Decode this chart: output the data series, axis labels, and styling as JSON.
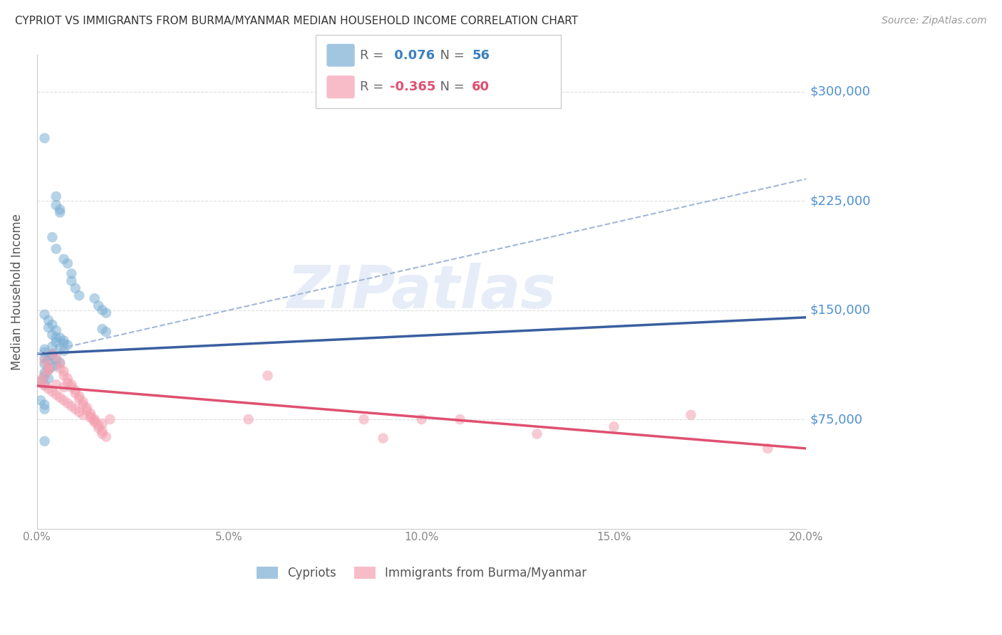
{
  "title": "CYPRIOT VS IMMIGRANTS FROM BURMA/MYANMAR MEDIAN HOUSEHOLD INCOME CORRELATION CHART",
  "source": "Source: ZipAtlas.com",
  "ylabel": "Median Household Income",
  "xlim": [
    0.0,
    0.2
  ],
  "ylim": [
    0,
    325000
  ],
  "yticks": [
    0,
    75000,
    150000,
    225000,
    300000
  ],
  "ytick_labels": [
    "",
    "$75,000",
    "$150,000",
    "$225,000",
    "$300,000"
  ],
  "xtick_labels": [
    "0.0%",
    "",
    "",
    "",
    "",
    "5.0%",
    "",
    "",
    "",
    "",
    "10.0%",
    "",
    "",
    "",
    "",
    "15.0%",
    "",
    "",
    "",
    "",
    "20.0%"
  ],
  "xtick_vals": [
    0.0,
    0.01,
    0.02,
    0.03,
    0.04,
    0.05,
    0.06,
    0.07,
    0.08,
    0.09,
    0.1,
    0.11,
    0.12,
    0.13,
    0.14,
    0.15,
    0.16,
    0.17,
    0.18,
    0.19,
    0.2
  ],
  "watermark": "ZIPatlas",
  "blue_color": "#7bafd4",
  "pink_color": "#f4a0b0",
  "blue_line_color": "#3a5fa0",
  "pink_line_color": "#e05070",
  "dashed_line_color": "#a0b8d8",
  "grid_color": "#dddddd",
  "title_color": "#333333",
  "right_label_color": "#5090d0",
  "blue_scatter": [
    [
      0.002,
      268000
    ],
    [
      0.005,
      228000
    ],
    [
      0.005,
      222000
    ],
    [
      0.006,
      219000
    ],
    [
      0.006,
      217000
    ],
    [
      0.004,
      200000
    ],
    [
      0.005,
      192000
    ],
    [
      0.007,
      185000
    ],
    [
      0.008,
      182000
    ],
    [
      0.009,
      175000
    ],
    [
      0.009,
      170000
    ],
    [
      0.01,
      165000
    ],
    [
      0.011,
      160000
    ],
    [
      0.015,
      158000
    ],
    [
      0.016,
      153000
    ],
    [
      0.017,
      150000
    ],
    [
      0.018,
      148000
    ],
    [
      0.002,
      147000
    ],
    [
      0.003,
      143000
    ],
    [
      0.004,
      140000
    ],
    [
      0.003,
      138000
    ],
    [
      0.005,
      136000
    ],
    [
      0.004,
      133000
    ],
    [
      0.006,
      131000
    ],
    [
      0.007,
      129000
    ],
    [
      0.005,
      128000
    ],
    [
      0.008,
      126000
    ],
    [
      0.006,
      124000
    ],
    [
      0.007,
      122000
    ],
    [
      0.004,
      120000
    ],
    [
      0.003,
      118000
    ],
    [
      0.005,
      116000
    ],
    [
      0.006,
      114000
    ],
    [
      0.005,
      112000
    ],
    [
      0.003,
      110000
    ],
    [
      0.004,
      125000
    ],
    [
      0.002,
      123000
    ],
    [
      0.002,
      121000
    ],
    [
      0.004,
      119000
    ],
    [
      0.002,
      117000
    ],
    [
      0.003,
      115000
    ],
    [
      0.002,
      113000
    ],
    [
      0.004,
      111000
    ],
    [
      0.003,
      109000
    ],
    [
      0.002,
      107000
    ],
    [
      0.002,
      105000
    ],
    [
      0.003,
      103000
    ],
    [
      0.001,
      101000
    ],
    [
      0.002,
      99000
    ],
    [
      0.001,
      88000
    ],
    [
      0.002,
      85000
    ],
    [
      0.002,
      82000
    ],
    [
      0.002,
      60000
    ],
    [
      0.005,
      131000
    ],
    [
      0.007,
      127000
    ],
    [
      0.017,
      137000
    ],
    [
      0.018,
      135000
    ]
  ],
  "pink_scatter": [
    [
      0.002,
      115000
    ],
    [
      0.003,
      112000
    ],
    [
      0.003,
      109000
    ],
    [
      0.004,
      120000
    ],
    [
      0.005,
      118000
    ],
    [
      0.006,
      113000
    ],
    [
      0.006,
      110000
    ],
    [
      0.007,
      108000
    ],
    [
      0.007,
      105000
    ],
    [
      0.008,
      103000
    ],
    [
      0.008,
      100000
    ],
    [
      0.009,
      99000
    ],
    [
      0.009,
      97000
    ],
    [
      0.01,
      95000
    ],
    [
      0.01,
      93000
    ],
    [
      0.011,
      91000
    ],
    [
      0.011,
      89000
    ],
    [
      0.012,
      87000
    ],
    [
      0.012,
      85000
    ],
    [
      0.013,
      83000
    ],
    [
      0.013,
      81000
    ],
    [
      0.014,
      79000
    ],
    [
      0.014,
      77000
    ],
    [
      0.015,
      75000
    ],
    [
      0.015,
      73000
    ],
    [
      0.016,
      71000
    ],
    [
      0.016,
      69000
    ],
    [
      0.017,
      67000
    ],
    [
      0.017,
      65000
    ],
    [
      0.018,
      63000
    ],
    [
      0.001,
      100000
    ],
    [
      0.002,
      98000
    ],
    [
      0.003,
      96000
    ],
    [
      0.004,
      94000
    ],
    [
      0.005,
      92000
    ],
    [
      0.006,
      90000
    ],
    [
      0.007,
      88000
    ],
    [
      0.008,
      86000
    ],
    [
      0.009,
      84000
    ],
    [
      0.01,
      82000
    ],
    [
      0.011,
      80000
    ],
    [
      0.012,
      78000
    ],
    [
      0.014,
      76000
    ],
    [
      0.015,
      74000
    ],
    [
      0.017,
      72000
    ],
    [
      0.019,
      75000
    ],
    [
      0.001,
      102000
    ],
    [
      0.002,
      105000
    ],
    [
      0.003,
      109000
    ],
    [
      0.005,
      99000
    ],
    [
      0.007,
      97000
    ],
    [
      0.055,
      75000
    ],
    [
      0.11,
      75000
    ],
    [
      0.13,
      65000
    ],
    [
      0.09,
      62000
    ],
    [
      0.17,
      78000
    ],
    [
      0.06,
      105000
    ],
    [
      0.085,
      75000
    ],
    [
      0.1,
      75000
    ],
    [
      0.19,
      55000
    ],
    [
      0.15,
      70000
    ]
  ],
  "blue_line_x0": 0.0,
  "blue_line_x1": 0.2,
  "blue_line_y0": 120000,
  "blue_line_y1": 145000,
  "dashed_line_x0": 0.0,
  "dashed_line_x1": 0.2,
  "dashed_line_y0": 120000,
  "dashed_line_y1": 240000,
  "pink_line_x0": 0.0,
  "pink_line_x1": 0.2,
  "pink_line_y0": 98000,
  "pink_line_y1": 55000,
  "figsize": [
    14.06,
    8.92
  ],
  "dpi": 100
}
